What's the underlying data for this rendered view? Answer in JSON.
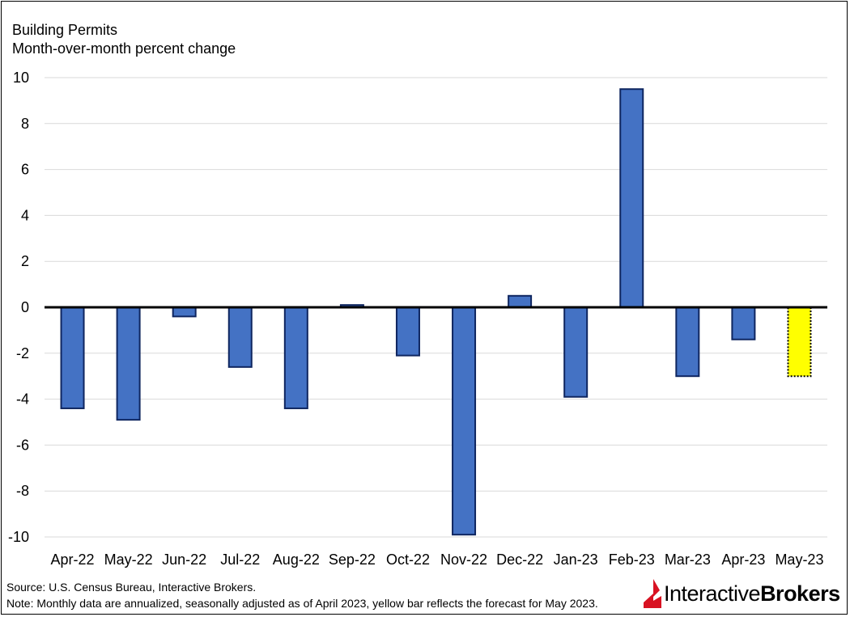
{
  "title": {
    "line1": "Building Permits",
    "line2": "Month-over-month percent change"
  },
  "chart_data": {
    "type": "bar",
    "title": "Building Permits",
    "subtitle": "Month-over-month percent change",
    "xlabel": "",
    "ylabel": "",
    "ylim": [
      -10,
      10
    ],
    "yticks": [
      10,
      8,
      6,
      4,
      2,
      0,
      -2,
      -4,
      -6,
      -8,
      -10
    ],
    "grid": true,
    "categories": [
      "Apr-22",
      "May-22",
      "Jun-22",
      "Jul-22",
      "Aug-22",
      "Sep-22",
      "Oct-22",
      "Nov-22",
      "Dec-22",
      "Jan-23",
      "Feb-23",
      "Mar-23",
      "Apr-23",
      "May-23"
    ],
    "values": [
      -4.4,
      -4.9,
      -0.4,
      -2.6,
      -4.4,
      0.1,
      -2.1,
      -9.9,
      0.5,
      -3.9,
      9.5,
      -3.0,
      -1.4,
      -3.0
    ],
    "forecast_index": 13,
    "colors": {
      "bar": "#4472C4",
      "bar_edge": "#0F2660",
      "forecast": "#FFFF00",
      "grid": "#D9D9D9",
      "zero_line": "#000000"
    }
  },
  "footer": {
    "source": "Source: U.S. Census Bureau, Interactive Brokers.",
    "note": "Note: Monthly data are annualized, seasonally adjusted as of April 2023, yellow bar reflects the forecast for May 2023."
  },
  "logo": {
    "part1": "Interactive",
    "part2": "Brokers",
    "mark_color": "#D81222"
  }
}
